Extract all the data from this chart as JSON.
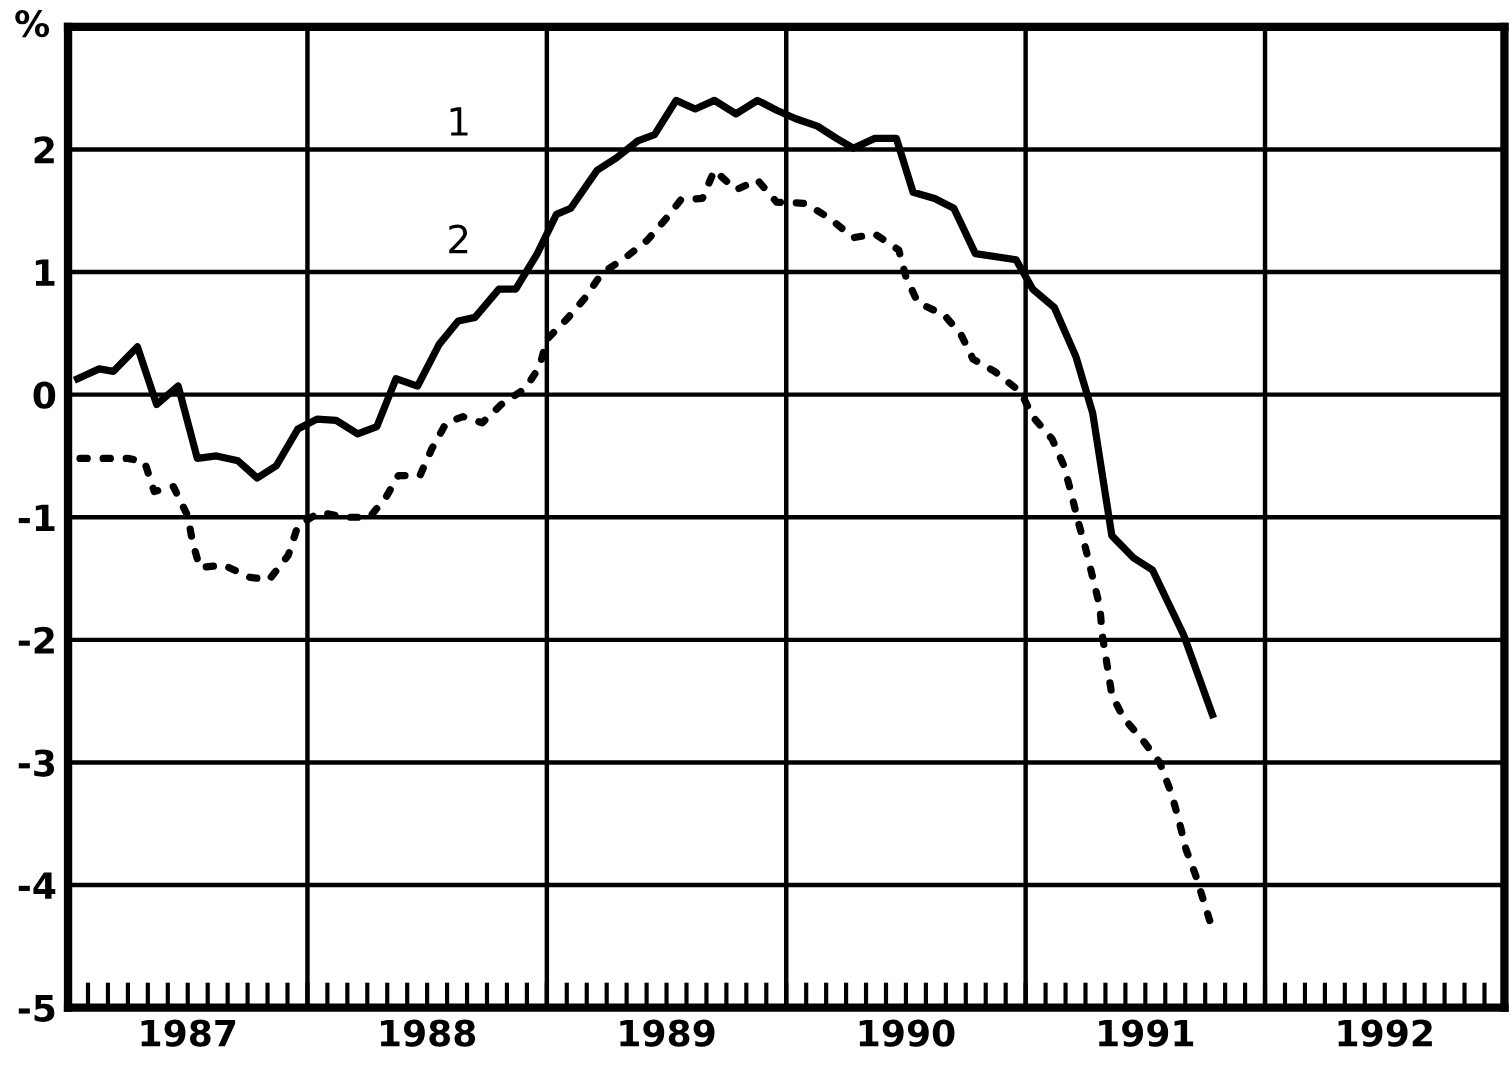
{
  "chart_data": {
    "type": "line",
    "ylabel": "%",
    "xlim": [
      1987,
      1993
    ],
    "ylim": [
      -5,
      3
    ],
    "yticks": [
      -5,
      -4,
      -3,
      -2,
      -1,
      0,
      1,
      2,
      {
        "value": 3,
        "label": null
      }
    ],
    "xticks": [
      {
        "value": 1987.0833,
        "label": null
      },
      {
        "value": 1987.1667,
        "label": null
      },
      {
        "value": 1987.25,
        "label": null
      },
      {
        "value": 1987.3333,
        "label": null
      },
      {
        "value": 1987.4167,
        "label": null
      },
      {
        "value": 1987.5,
        "label": "1987"
      },
      {
        "value": 1987.5833,
        "label": null
      },
      {
        "value": 1987.6667,
        "label": null
      },
      {
        "value": 1987.75,
        "label": null
      },
      {
        "value": 1987.8333,
        "label": null
      },
      {
        "value": 1987.9167,
        "label": null
      },
      {
        "value": 1988,
        "label": null
      },
      {
        "value": 1988.0833,
        "label": null
      },
      {
        "value": 1988.1667,
        "label": null
      },
      {
        "value": 1988.25,
        "label": null
      },
      {
        "value": 1988.3333,
        "label": null
      },
      {
        "value": 1988.4167,
        "label": null
      },
      {
        "value": 1988.5,
        "label": "1988"
      },
      {
        "value": 1988.5833,
        "label": null
      },
      {
        "value": 1988.6667,
        "label": null
      },
      {
        "value": 1988.75,
        "label": null
      },
      {
        "value": 1988.8333,
        "label": null
      },
      {
        "value": 1988.9167,
        "label": null
      },
      {
        "value": 1989,
        "label": null
      },
      {
        "value": 1989.0833,
        "label": null
      },
      {
        "value": 1989.1667,
        "label": null
      },
      {
        "value": 1989.25,
        "label": null
      },
      {
        "value": 1989.3333,
        "label": null
      },
      {
        "value": 1989.4167,
        "label": null
      },
      {
        "value": 1989.5,
        "label": "1989"
      },
      {
        "value": 1989.5833,
        "label": null
      },
      {
        "value": 1989.6667,
        "label": null
      },
      {
        "value": 1989.75,
        "label": null
      },
      {
        "value": 1989.8333,
        "label": null
      },
      {
        "value": 1989.9167,
        "label": null
      },
      {
        "value": 1990,
        "label": null
      },
      {
        "value": 1990.0833,
        "label": null
      },
      {
        "value": 1990.1667,
        "label": null
      },
      {
        "value": 1990.25,
        "label": null
      },
      {
        "value": 1990.3333,
        "label": null
      },
      {
        "value": 1990.4167,
        "label": null
      },
      {
        "value": 1990.5,
        "label": "1990"
      },
      {
        "value": 1990.5833,
        "label": null
      },
      {
        "value": 1990.6667,
        "label": null
      },
      {
        "value": 1990.75,
        "label": null
      },
      {
        "value": 1990.8333,
        "label": null
      },
      {
        "value": 1990.9167,
        "label": null
      },
      {
        "value": 1991,
        "label": null
      },
      {
        "value": 1991.0833,
        "label": null
      },
      {
        "value": 1991.1667,
        "label": null
      },
      {
        "value": 1991.25,
        "label": null
      },
      {
        "value": 1991.3333,
        "label": null
      },
      {
        "value": 1991.4167,
        "label": null
      },
      {
        "value": 1991.5,
        "label": "1991"
      },
      {
        "value": 1991.5833,
        "label": null
      },
      {
        "value": 1991.6667,
        "label": null
      },
      {
        "value": 1991.75,
        "label": null
      },
      {
        "value": 1991.8333,
        "label": null
      },
      {
        "value": 1991.9167,
        "label": null
      },
      {
        "value": 1992,
        "label": null
      },
      {
        "value": 1992.0833,
        "label": null
      },
      {
        "value": 1992.1667,
        "label": null
      },
      {
        "value": 1992.25,
        "label": null
      },
      {
        "value": 1992.3333,
        "label": null
      },
      {
        "value": 1992.4167,
        "label": null
      },
      {
        "value": 1992.5,
        "label": "1992"
      },
      {
        "value": 1992.5833,
        "label": null
      },
      {
        "value": 1992.6667,
        "label": null
      },
      {
        "value": 1992.75,
        "label": null
      },
      {
        "value": 1992.8333,
        "label": null
      },
      {
        "value": 1992.9167,
        "label": null
      }
    ],
    "grid": "y",
    "ref_lines": [
      {
        "axis": "x",
        "value": 1988,
        "color": "#000000"
      },
      {
        "axis": "x",
        "value": 1989,
        "color": "#000000"
      },
      {
        "axis": "x",
        "value": 1990,
        "color": "#000000"
      },
      {
        "axis": "x",
        "value": 1991,
        "color": "#000000"
      },
      {
        "axis": "x",
        "value": 1992,
        "color": "#000000"
      }
    ],
    "annotations": [
      "1",
      "2"
    ],
    "series": [
      {
        "color": "#000000",
        "line_style": "solid",
        "x": [
          1987.04,
          1987.13,
          1987.19,
          1987.29,
          1987.37,
          1987.46,
          1987.54,
          1987.62,
          1987.71,
          1987.79,
          1987.87,
          1987.96,
          1988.04,
          1988.12,
          1988.21,
          1988.29,
          1988.37,
          1988.46,
          1988.55,
          1988.63,
          1988.7,
          1988.8,
          1988.87,
          1988.96,
          1989.04,
          1989.1,
          1989.21,
          1989.29,
          1989.38,
          1989.45,
          1989.54,
          1989.62,
          1989.7,
          1989.79,
          1989.88,
          1989.96,
          1990.04,
          1990.13,
          1990.21,
          1990.28,
          1990.37,
          1990.46,
          1990.53,
          1990.62,
          1990.7,
          1990.79,
          1990.96,
          1991.03,
          1991.12,
          1991.21,
          1991.28,
          1991.36,
          1991.45,
          1991.53,
          1991.66,
          1991.78
        ],
        "values": [
          0.13,
          0.21,
          0.19,
          0.39,
          -0.08,
          0.07,
          -0.52,
          -0.5,
          -0.54,
          -0.68,
          -0.58,
          -0.28,
          -0.2,
          -0.21,
          -0.32,
          -0.26,
          0.13,
          0.07,
          0.41,
          0.6,
          0.63,
          0.86,
          0.86,
          1.15,
          1.47,
          1.52,
          1.83,
          1.93,
          2.07,
          2.12,
          2.4,
          2.33,
          2.4,
          2.29,
          2.4,
          2.32,
          2.25,
          2.19,
          2.09,
          2.01,
          2.09,
          2.09,
          1.65,
          1.6,
          1.52,
          1.15,
          1.1,
          0.86,
          0.71,
          0.31,
          -0.15,
          -1.15,
          -1.33,
          -1.43,
          -1.96,
          -2.61
        ]
      },
      {
        "color": "#000000",
        "line_style": "dotted",
        "x": [
          1987.05,
          1987.15,
          1987.25,
          1987.32,
          1987.36,
          1987.44,
          1987.5,
          1987.52,
          1987.55,
          1987.65,
          1987.76,
          1987.84,
          1987.92,
          1987.96,
          1988.05,
          1988.16,
          1988.26,
          1988.33,
          1988.38,
          1988.47,
          1988.52,
          1988.58,
          1988.65,
          1988.73,
          1988.81,
          1988.91,
          1988.97,
          1989.0,
          1989.09,
          1989.16,
          1989.23,
          1989.33,
          1989.42,
          1989.5,
          1989.56,
          1989.65,
          1989.7,
          1989.79,
          1989.88,
          1989.96,
          1990.08,
          1990.18,
          1990.28,
          1990.37,
          1990.47,
          1990.5,
          1990.55,
          1990.66,
          1990.73,
          1990.78,
          1990.87,
          1990.98,
          1991.03,
          1991.11,
          1991.16,
          1991.19,
          1991.22,
          1991.25,
          1991.28,
          1991.31,
          1991.32,
          1991.34,
          1991.36,
          1991.41,
          1991.49,
          1991.56,
          1991.61,
          1991.64,
          1991.67,
          1991.71,
          1991.75,
          1991.78
        ],
        "values": [
          -0.52,
          -0.52,
          -0.52,
          -0.55,
          -0.79,
          -0.75,
          -0.99,
          -1.2,
          -1.41,
          -1.39,
          -1.49,
          -1.51,
          -1.31,
          -1.07,
          -0.96,
          -1.0,
          -1.0,
          -0.83,
          -0.66,
          -0.66,
          -0.44,
          -0.23,
          -0.18,
          -0.23,
          -0.08,
          0.05,
          0.23,
          0.45,
          0.63,
          0.79,
          0.99,
          1.12,
          1.26,
          1.44,
          1.59,
          1.6,
          1.83,
          1.67,
          1.75,
          1.57,
          1.56,
          1.44,
          1.28,
          1.31,
          1.18,
          0.96,
          0.75,
          0.65,
          0.49,
          0.29,
          0.19,
          0.02,
          -0.18,
          -0.36,
          -0.58,
          -0.8,
          -1.04,
          -1.25,
          -1.49,
          -1.73,
          -1.96,
          -2.2,
          -2.45,
          -2.64,
          -2.82,
          -3.0,
          -3.26,
          -3.47,
          -3.71,
          -3.92,
          -4.17,
          -4.36
        ]
      }
    ]
  }
}
